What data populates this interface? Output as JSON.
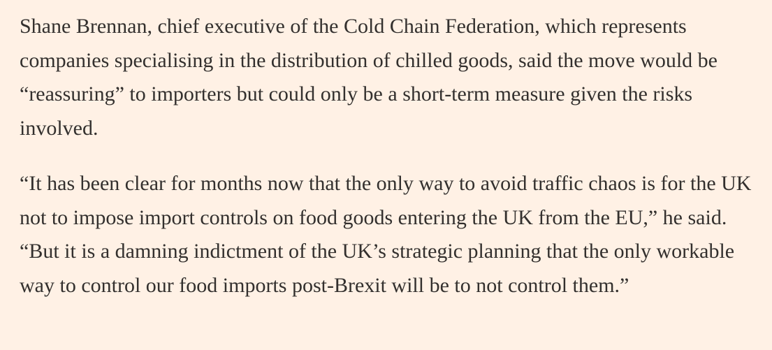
{
  "article": {
    "paragraphs": [
      "Shane Brennan, chief executive of the Cold Chain Federation, which represents companies specialising in the distribution of chilled goods, said the move would be “reassuring” to importers but could only be a short-term measure given the risks involved.",
      "“It has been clear for months now that the only way to avoid traffic chaos is for the UK not to impose import controls on food goods entering the UK from the EU,” he said. “But it is a damning indictment of the UK’s strategic planning that the only workable way to control our food imports post-Brexit will be to not control them.”"
    ]
  },
  "colors": {
    "background": "#fff1e5",
    "text": "#33302e"
  }
}
